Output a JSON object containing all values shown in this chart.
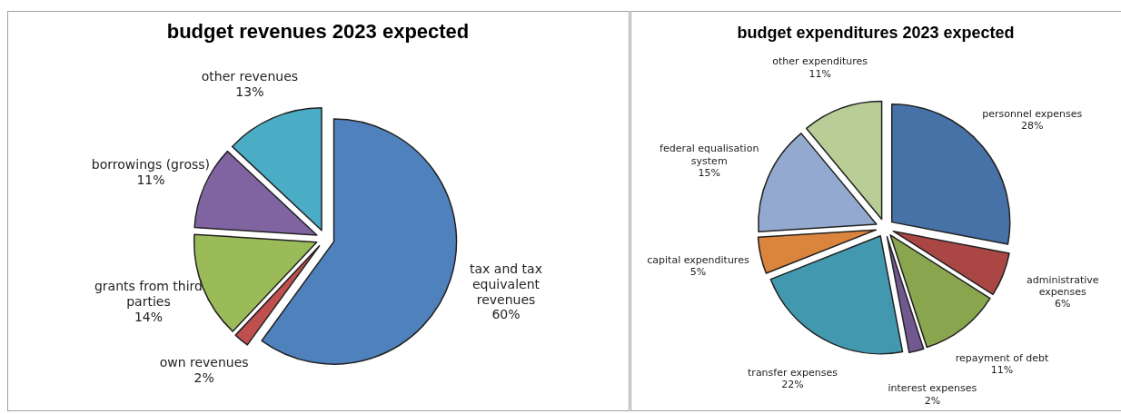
{
  "chart_data": [
    {
      "type": "pie",
      "title": "budget revenues 2023 expected",
      "categories": [
        "tax and tax equivalent revenues",
        "own revenues",
        "grants from third parties",
        "borrowings (gross)",
        "other revenues"
      ],
      "values": [
        60,
        2,
        14,
        11,
        13
      ],
      "value_labels": [
        "60%",
        "2%",
        "14%",
        "11%",
        "13%"
      ],
      "colors": [
        "#4f81bd",
        "#c0504d",
        "#9bbb59",
        "#8064a2",
        "#4bacc6"
      ]
    },
    {
      "type": "pie",
      "title": "budget expenditures 2023 expected",
      "categories": [
        "personnel expenses",
        "administrative expenses",
        "repayment of debt",
        "interest expenses",
        "transfer expenses",
        "capital expenditures",
        "federal equalisation system",
        "other expenditures"
      ],
      "values": [
        28,
        6,
        11,
        2,
        22,
        5,
        15,
        11
      ],
      "value_labels": [
        "28%",
        "6%",
        "11%",
        "2%",
        "22%",
        "5%",
        "15%",
        "11%"
      ],
      "colors": [
        "#4672a8",
        "#aa4643",
        "#89a54e",
        "#71588f",
        "#4198af",
        "#db843d",
        "#93a9cf",
        "#b9cd96"
      ]
    }
  ]
}
